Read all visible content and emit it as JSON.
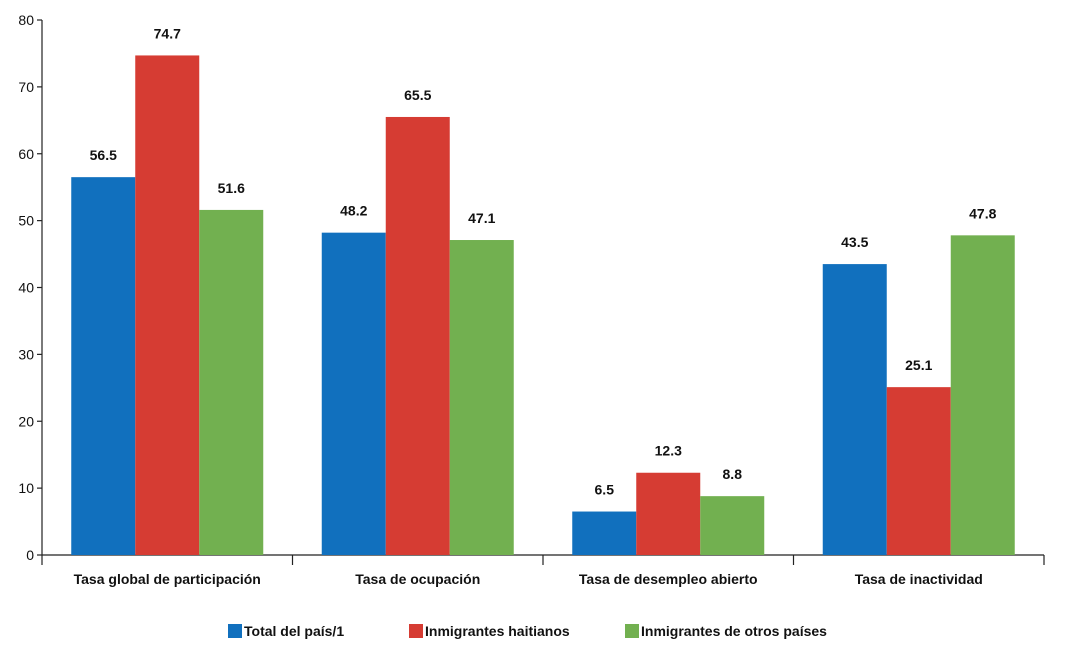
{
  "chart_data": {
    "type": "bar",
    "title": "",
    "xlabel": "",
    "ylabel": "",
    "ylim": [
      0,
      80
    ],
    "yticks": [
      0,
      10,
      20,
      30,
      40,
      50,
      60,
      70,
      80
    ],
    "grid": false,
    "legend_position": "bottom",
    "categories": [
      "Tasa global de participación",
      "Tasa de ocupación",
      "Tasa de desempleo abierto",
      "Tasa de inactividad"
    ],
    "series": [
      {
        "name": "Total del país/1",
        "color": "#1170be",
        "values": [
          56.5,
          48.2,
          6.5,
          43.5
        ]
      },
      {
        "name": "Inmigrantes haitianos",
        "color": "#d63c33",
        "values": [
          74.7,
          65.5,
          12.3,
          25.1
        ]
      },
      {
        "name": "Inmigrantes de otros países",
        "color": "#72b050",
        "values": [
          51.6,
          47.1,
          8.8,
          47.8
        ]
      }
    ]
  }
}
